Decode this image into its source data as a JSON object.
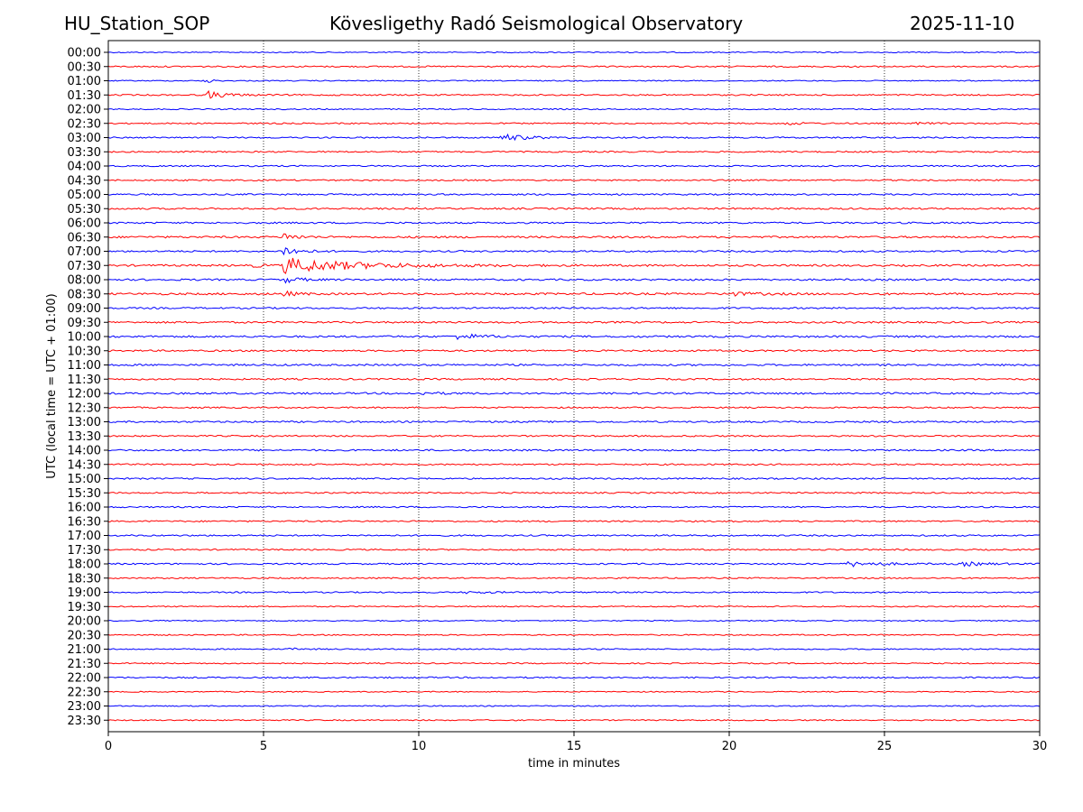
{
  "header": {
    "station": "HU_Station_SOP",
    "observatory": "Kövesligethy Radó Seismological Observatory",
    "date": "2025-11-10"
  },
  "chart_data": {
    "type": "line",
    "title": "Kövesligethy Radó Seismological Observatory",
    "xlabel": "time in minutes",
    "ylabel": "UTC (local time = UTC + 01:00)",
    "xlim": [
      0,
      30
    ],
    "xticks": [
      0,
      5,
      10,
      15,
      20,
      25,
      30
    ],
    "grid": "vertical dotted lines at 5-minute ticks",
    "colors": [
      "#0000ff",
      "#ff0000"
    ],
    "rows": [
      {
        "label": "00:00",
        "noise": 0.22,
        "events": []
      },
      {
        "label": "00:30",
        "noise": 0.3,
        "events": []
      },
      {
        "label": "01:00",
        "noise": 0.22,
        "events": [
          {
            "start": 3.1,
            "amp": 2.2,
            "dur": 0.3
          }
        ]
      },
      {
        "label": "01:30",
        "noise": 0.3,
        "events": [
          {
            "start": 3.15,
            "amp": 1.6,
            "dur": 1.3
          }
        ]
      },
      {
        "label": "02:00",
        "noise": 0.25,
        "events": []
      },
      {
        "label": "02:30",
        "noise": 0.28,
        "events": [
          {
            "start": 21.8,
            "amp": 0.6,
            "dur": 1.2
          },
          {
            "start": 26.0,
            "amp": 0.5,
            "dur": 0.8
          }
        ]
      },
      {
        "label": "03:00",
        "noise": 0.3,
        "events": [
          {
            "start": 12.6,
            "amp": 1.5,
            "dur": 1.8
          }
        ]
      },
      {
        "label": "03:30",
        "noise": 0.3,
        "events": []
      },
      {
        "label": "04:00",
        "noise": 0.3,
        "events": []
      },
      {
        "label": "04:30",
        "noise": 0.3,
        "events": []
      },
      {
        "label": "05:00",
        "noise": 0.32,
        "events": []
      },
      {
        "label": "05:30",
        "noise": 0.35,
        "events": []
      },
      {
        "label": "06:00",
        "noise": 0.35,
        "events": []
      },
      {
        "label": "06:30",
        "noise": 0.4,
        "events": [
          {
            "start": 5.6,
            "amp": 1.8,
            "dur": 0.8
          }
        ]
      },
      {
        "label": "07:00",
        "noise": 0.35,
        "events": [
          {
            "start": 5.6,
            "amp": 2.5,
            "dur": 1.0
          }
        ]
      },
      {
        "label": "07:30",
        "noise": 0.4,
        "events": [
          {
            "start": 4.5,
            "amp": 0.8,
            "dur": 1.0
          },
          {
            "start": 5.6,
            "amp": 3.2,
            "dur": 5.0
          }
        ]
      },
      {
        "label": "08:00",
        "noise": 0.38,
        "events": [
          {
            "start": 5.6,
            "amp": 1.5,
            "dur": 1.0
          }
        ]
      },
      {
        "label": "08:30",
        "noise": 0.42,
        "events": [
          {
            "start": 5.6,
            "amp": 1.2,
            "dur": 0.8
          },
          {
            "start": 19.8,
            "amp": 0.8,
            "dur": 2.0
          }
        ]
      },
      {
        "label": "09:00",
        "noise": 0.35,
        "events": []
      },
      {
        "label": "09:30",
        "noise": 0.38,
        "events": []
      },
      {
        "label": "10:00",
        "noise": 0.4,
        "events": [
          {
            "start": 11.2,
            "amp": 1.3,
            "dur": 1.5
          }
        ]
      },
      {
        "label": "10:30",
        "noise": 0.35,
        "events": []
      },
      {
        "label": "11:00",
        "noise": 0.38,
        "events": []
      },
      {
        "label": "11:30",
        "noise": 0.35,
        "events": []
      },
      {
        "label": "12:00",
        "noise": 0.38,
        "events": [
          {
            "start": 10.0,
            "amp": 0.5,
            "dur": 1.5
          }
        ]
      },
      {
        "label": "12:30",
        "noise": 0.3,
        "events": []
      },
      {
        "label": "13:00",
        "noise": 0.35,
        "events": []
      },
      {
        "label": "13:30",
        "noise": 0.32,
        "events": []
      },
      {
        "label": "14:00",
        "noise": 0.35,
        "events": []
      },
      {
        "label": "14:30",
        "noise": 0.32,
        "events": []
      },
      {
        "label": "15:00",
        "noise": 0.32,
        "events": []
      },
      {
        "label": "15:30",
        "noise": 0.3,
        "events": []
      },
      {
        "label": "16:00",
        "noise": 0.3,
        "events": []
      },
      {
        "label": "16:30",
        "noise": 0.3,
        "events": []
      },
      {
        "label": "17:00",
        "noise": 0.32,
        "events": []
      },
      {
        "label": "17:30",
        "noise": 0.3,
        "events": [
          {
            "start": 15.8,
            "amp": 0.4,
            "dur": 0.5
          }
        ]
      },
      {
        "label": "18:00",
        "noise": 0.32,
        "events": [
          {
            "start": 23.8,
            "amp": 1.1,
            "dur": 2.0
          },
          {
            "start": 27.5,
            "amp": 0.8,
            "dur": 1.5
          }
        ]
      },
      {
        "label": "18:30",
        "noise": 0.28,
        "events": []
      },
      {
        "label": "19:00",
        "noise": 0.28,
        "events": [
          {
            "start": 11.5,
            "amp": 0.4,
            "dur": 2.0
          }
        ]
      },
      {
        "label": "19:30",
        "noise": 0.25,
        "events": []
      },
      {
        "label": "20:00",
        "noise": 0.22,
        "events": []
      },
      {
        "label": "20:30",
        "noise": 0.25,
        "events": []
      },
      {
        "label": "21:00",
        "noise": 0.25,
        "events": [
          {
            "start": 5.8,
            "amp": 0.5,
            "dur": 0.8
          }
        ]
      },
      {
        "label": "21:30",
        "noise": 0.25,
        "events": []
      },
      {
        "label": "22:00",
        "noise": 0.3,
        "events": []
      },
      {
        "label": "22:30",
        "noise": 0.22,
        "events": []
      },
      {
        "label": "23:00",
        "noise": 0.22,
        "events": []
      },
      {
        "label": "23:30",
        "noise": 0.25,
        "events": []
      }
    ]
  }
}
